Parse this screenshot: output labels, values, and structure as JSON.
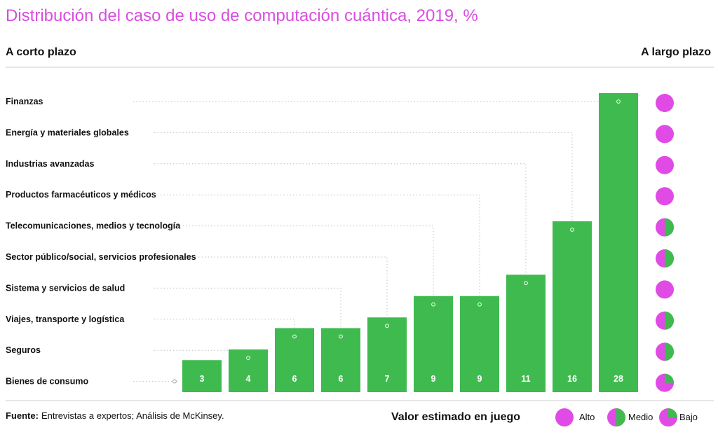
{
  "colors": {
    "title": "#d94de0",
    "bar": "#3fba4f",
    "alto": "#e04be5",
    "medio_bajo_green": "#3fba4f",
    "leader": "#bfbfbf",
    "rule": "#cccccc"
  },
  "headers": {
    "left": "A corto plazo",
    "right": "A largo plazo"
  },
  "source": {
    "label": "Fuente:",
    "text": "Entrevistas a expertos; Análisis de McKinsey."
  },
  "legend": {
    "title": "Valor estimado en juego",
    "items": [
      {
        "key": "alto",
        "label": "Alto"
      },
      {
        "key": "medio",
        "label": "Medio"
      },
      {
        "key": "bajo",
        "label": "Bajo"
      }
    ]
  },
  "chart_data": {
    "type": "bar",
    "title": "Distribución del caso de uso de computación cuántica, 2019, %",
    "categories": [
      "Finanzas",
      "Energía y materiales globales",
      "Industrias avanzadas",
      "Productos farmacéuticos y médicos",
      "Telecomunicaciones, medios y tecnología",
      "Sector público/social, servicios profesionales",
      "Sistema y servicios de salud",
      "Viajes, transporte y logística",
      "Seguros",
      "Bienes de consumo"
    ],
    "values": [
      28,
      16,
      11,
      9,
      9,
      7,
      6,
      6,
      4,
      3
    ],
    "long_term_value": [
      "alto",
      "alto",
      "alto",
      "alto",
      "medio",
      "medio",
      "alto",
      "medio",
      "medio",
      "bajo"
    ],
    "ylim": [
      0,
      28
    ],
    "grid": false,
    "legend": "bottom-right"
  }
}
